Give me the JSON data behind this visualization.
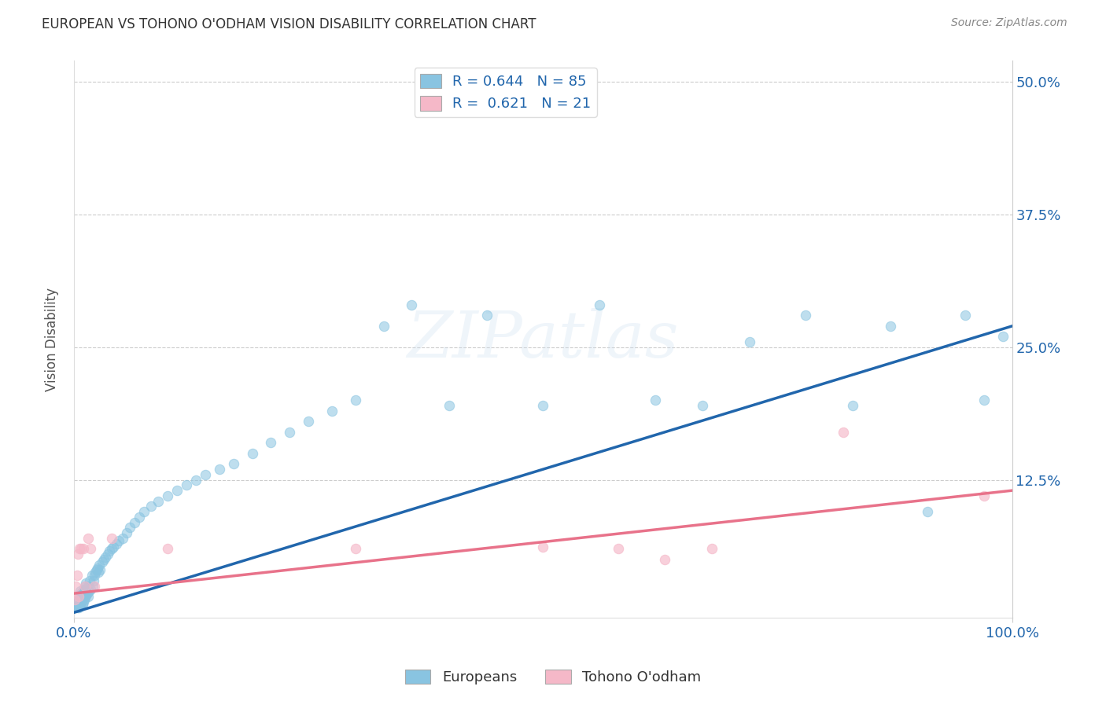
{
  "title": "EUROPEAN VS TOHONO O'ODHAM VISION DISABILITY CORRELATION CHART",
  "source": "Source: ZipAtlas.com",
  "ylabel": "Vision Disability",
  "xlim": [
    0,
    1
  ],
  "ylim": [
    -0.005,
    0.52
  ],
  "xtick_labels": [
    "0.0%",
    "100.0%"
  ],
  "xtick_positions": [
    0,
    1
  ],
  "ytick_labels": [
    "12.5%",
    "25.0%",
    "37.5%",
    "50.0%"
  ],
  "ytick_positions": [
    0.125,
    0.25,
    0.375,
    0.5
  ],
  "blue_color": "#89c4e1",
  "pink_color": "#f5b8c8",
  "blue_line_color": "#2166ac",
  "pink_line_color": "#e8728a",
  "blue_R": 0.644,
  "blue_N": 85,
  "pink_R": 0.621,
  "pink_N": 21,
  "watermark": "ZIPatlas",
  "legend_label_blue": "Europeans",
  "legend_label_pink": "Tohono O'odham",
  "blue_line_x0": 0.0,
  "blue_line_y0": 0.0,
  "blue_line_x1": 1.0,
  "blue_line_y1": 0.27,
  "pink_line_x0": 0.0,
  "pink_line_y0": 0.018,
  "pink_line_x1": 1.0,
  "pink_line_y1": 0.115,
  "blue_points_x": [
    0.002,
    0.003,
    0.004,
    0.004,
    0.005,
    0.005,
    0.006,
    0.006,
    0.007,
    0.007,
    0.007,
    0.008,
    0.008,
    0.009,
    0.009,
    0.01,
    0.01,
    0.011,
    0.011,
    0.012,
    0.012,
    0.013,
    0.013,
    0.014,
    0.015,
    0.015,
    0.016,
    0.017,
    0.018,
    0.019,
    0.02,
    0.021,
    0.022,
    0.023,
    0.024,
    0.025,
    0.026,
    0.027,
    0.028,
    0.03,
    0.032,
    0.034,
    0.036,
    0.038,
    0.04,
    0.042,
    0.045,
    0.048,
    0.052,
    0.056,
    0.06,
    0.065,
    0.07,
    0.075,
    0.082,
    0.09,
    0.1,
    0.11,
    0.12,
    0.13,
    0.14,
    0.155,
    0.17,
    0.19,
    0.21,
    0.23,
    0.25,
    0.275,
    0.3,
    0.33,
    0.36,
    0.4,
    0.44,
    0.5,
    0.56,
    0.62,
    0.67,
    0.72,
    0.78,
    0.83,
    0.87,
    0.91,
    0.95,
    0.97,
    0.99
  ],
  "blue_points_y": [
    0.005,
    0.006,
    0.005,
    0.01,
    0.005,
    0.012,
    0.007,
    0.015,
    0.006,
    0.014,
    0.02,
    0.01,
    0.018,
    0.008,
    0.016,
    0.01,
    0.02,
    0.012,
    0.022,
    0.014,
    0.025,
    0.016,
    0.028,
    0.018,
    0.015,
    0.025,
    0.02,
    0.03,
    0.022,
    0.035,
    0.025,
    0.03,
    0.035,
    0.038,
    0.04,
    0.042,
    0.038,
    0.045,
    0.04,
    0.048,
    0.05,
    0.052,
    0.055,
    0.058,
    0.06,
    0.062,
    0.065,
    0.068,
    0.07,
    0.075,
    0.08,
    0.085,
    0.09,
    0.095,
    0.1,
    0.105,
    0.11,
    0.115,
    0.12,
    0.125,
    0.13,
    0.135,
    0.14,
    0.15,
    0.16,
    0.17,
    0.18,
    0.19,
    0.2,
    0.27,
    0.29,
    0.195,
    0.28,
    0.195,
    0.29,
    0.2,
    0.195,
    0.255,
    0.28,
    0.195,
    0.27,
    0.095,
    0.28,
    0.2,
    0.26
  ],
  "pink_points_x": [
    0.001,
    0.002,
    0.003,
    0.004,
    0.005,
    0.006,
    0.008,
    0.01,
    0.012,
    0.015,
    0.018,
    0.022,
    0.04,
    0.1,
    0.3,
    0.5,
    0.58,
    0.63,
    0.68,
    0.82,
    0.97
  ],
  "pink_points_y": [
    0.012,
    0.025,
    0.035,
    0.055,
    0.015,
    0.06,
    0.06,
    0.06,
    0.025,
    0.07,
    0.06,
    0.025,
    0.07,
    0.06,
    0.06,
    0.062,
    0.06,
    0.05,
    0.06,
    0.17,
    0.11
  ]
}
